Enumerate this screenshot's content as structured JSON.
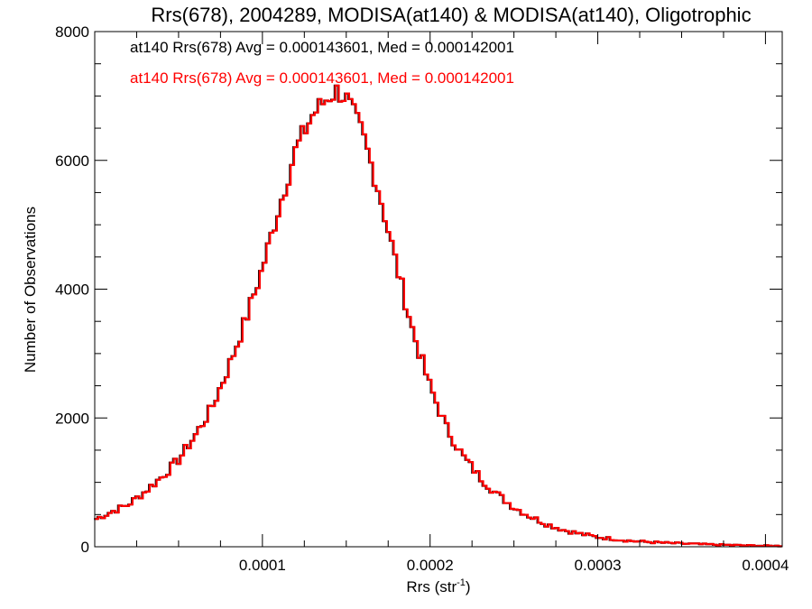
{
  "chart_data": {
    "type": "histogram",
    "title": "Rrs(678), 2004289, MODISA(at140) & MODISA(at140), Oligotrophic",
    "xlabel": "Rrs (str",
    "xlabel_sup": "-1",
    "xlabel_tail": ")",
    "ylabel": "Number of Observations",
    "xlim": [
      0.0,
      0.00041
    ],
    "ylim": [
      0,
      8000
    ],
    "x_ticks": [
      0.0001,
      0.0002,
      0.0003,
      0.0004
    ],
    "x_tick_labels": [
      "0.0001",
      "0.0002",
      "0.0003",
      "0.0004"
    ],
    "y_ticks": [
      0,
      2000,
      4000,
      6000,
      8000
    ],
    "y_tick_labels": [
      "0",
      "2000",
      "4000",
      "6000",
      "8000"
    ],
    "grid": false,
    "legend_position": "top-left",
    "bin_width": 2.05e-06,
    "anchors": [
      [
        0.0,
        420
      ],
      [
        1e-05,
        540
      ],
      [
        2e-05,
        650
      ],
      [
        3e-05,
        850
      ],
      [
        4e-05,
        1080
      ],
      [
        5e-05,
        1340
      ],
      [
        6e-05,
        1720
      ],
      [
        7e-05,
        2150
      ],
      [
        8e-05,
        2780
      ],
      [
        9e-05,
        3500
      ],
      [
        0.0001,
        4300
      ],
      [
        0.00011,
        5250
      ],
      [
        0.00012,
        6150
      ],
      [
        0.00013,
        6700
      ],
      [
        0.00014,
        7000
      ],
      [
        0.000145,
        7080
      ],
      [
        0.00015,
        6980
      ],
      [
        0.00016,
        6400
      ],
      [
        0.00017,
        5500
      ],
      [
        0.00018,
        4400
      ],
      [
        0.00019,
        3350
      ],
      [
        0.0002,
        2500
      ],
      [
        0.00021,
        1850
      ],
      [
        0.00022,
        1400
      ],
      [
        0.00023,
        1080
      ],
      [
        0.00024,
        820
      ],
      [
        0.00025,
        620
      ],
      [
        0.00026,
        470
      ],
      [
        0.00027,
        350
      ],
      [
        0.00028,
        260
      ],
      [
        0.00029,
        200
      ],
      [
        0.0003,
        150
      ],
      [
        0.00032,
        90
      ],
      [
        0.00034,
        60
      ],
      [
        0.00036,
        40
      ],
      [
        0.00038,
        25
      ],
      [
        0.0004,
        15
      ],
      [
        0.00041,
        12
      ]
    ],
    "series": [
      {
        "name": "MODISA(at140)",
        "color": "#000000"
      },
      {
        "name": "MODISA(at140)",
        "color": "#ff0000"
      }
    ],
    "legend": [
      {
        "text": "at140 Rrs(678) Avg = 0.000143601, Med = 0.000142001",
        "color": "#000000"
      },
      {
        "text": "at140 Rrs(678) Avg = 0.000143601, Med = 0.000142001",
        "color": "#ff0000"
      }
    ]
  }
}
